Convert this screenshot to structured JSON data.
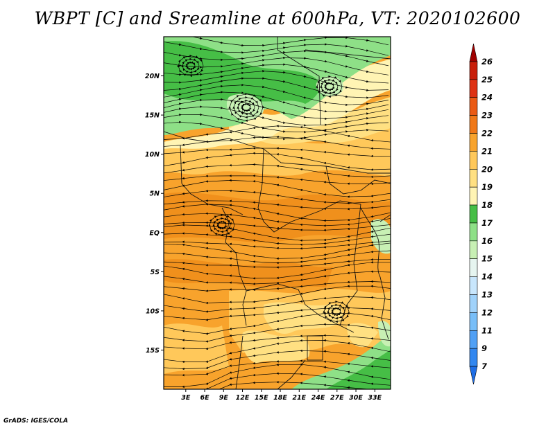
{
  "title": "WBPT [C] and Sreamline at 600hPa, VT: 2020102600",
  "footer": "GrADS: IGES/COLA",
  "map": {
    "lon_range": [
      -0.5,
      35.5
    ],
    "lat_range": [
      -20,
      25
    ],
    "lat_labels": [
      {
        "lat": 20,
        "text": "20N"
      },
      {
        "lat": 15,
        "text": "15N"
      },
      {
        "lat": 10,
        "text": "10N"
      },
      {
        "lat": 5,
        "text": "5N"
      },
      {
        "lat": 0,
        "text": "EQ"
      },
      {
        "lat": -5,
        "text": "5S"
      },
      {
        "lat": -10,
        "text": "10S"
      },
      {
        "lat": -15,
        "text": "15S"
      }
    ],
    "lon_labels": [
      {
        "lon": 3,
        "text": "3E"
      },
      {
        "lon": 6,
        "text": "6E"
      },
      {
        "lon": 9,
        "text": "9E"
      },
      {
        "lon": 12,
        "text": "12E"
      },
      {
        "lon": 15,
        "text": "15E"
      },
      {
        "lon": 18,
        "text": "18E"
      },
      {
        "lon": 21,
        "text": "21E"
      },
      {
        "lon": 24,
        "text": "24E"
      },
      {
        "lon": 27,
        "text": "27E"
      },
      {
        "lon": 30,
        "text": "30E"
      },
      {
        "lon": 33,
        "text": "33E"
      }
    ]
  },
  "colorbar": {
    "labels": [
      "7",
      "9",
      "11",
      "12",
      "13",
      "14",
      "15",
      "16",
      "17",
      "18",
      "19",
      "20",
      "21",
      "22",
      "23",
      "24",
      "25",
      "26"
    ],
    "colors": [
      "#1e6ee6",
      "#3287f0",
      "#50a0f5",
      "#78bef8",
      "#a0d2fa",
      "#c8e6fc",
      "#e6f5f0",
      "#c8f0b4",
      "#8ee087",
      "#46be46",
      "#fff4b4",
      "#ffe082",
      "#ffc85a",
      "#f8a32c",
      "#f07818",
      "#ea5a14",
      "#de3214",
      "#c81e0a",
      "#a00000"
    ]
  }
}
